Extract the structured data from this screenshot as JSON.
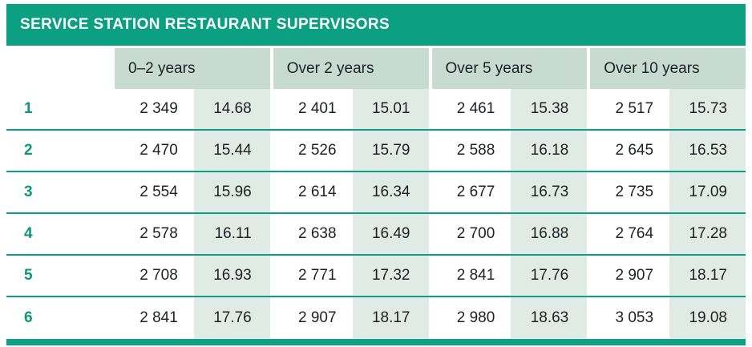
{
  "title": "SERVICE STATION RESTAURANT SUPERVISORS",
  "table": {
    "column_headers": [
      "0–2 years",
      "Over 2 years",
      "Over 5 years",
      "Over 10 years"
    ],
    "rows": [
      {
        "level": "1",
        "cells": [
          "2 349",
          "14.68",
          "2 401",
          "15.01",
          "2 461",
          "15.38",
          "2 517",
          "15.73"
        ]
      },
      {
        "level": "2",
        "cells": [
          "2 470",
          "15.44",
          "2 526",
          "15.79",
          "2 588",
          "16.18",
          "2 645",
          "16.53"
        ]
      },
      {
        "level": "3",
        "cells": [
          "2 554",
          "15.96",
          "2 614",
          "16.34",
          "2 677",
          "16.73",
          "2 735",
          "17.09"
        ]
      },
      {
        "level": "4",
        "cells": [
          "2 578",
          "16.11",
          "2 638",
          "16.49",
          "2 700",
          "16.88",
          "2 764",
          "17.28"
        ]
      },
      {
        "level": "5",
        "cells": [
          "2 708",
          "16.93",
          "2 771",
          "17.32",
          "2 841",
          "17.76",
          "2 907",
          "18.17"
        ]
      },
      {
        "level": "6",
        "cells": [
          "2 841",
          "17.76",
          "2 907",
          "18.17",
          "2 980",
          "18.63",
          "3 053",
          "19.08"
        ]
      }
    ]
  },
  "chart_data": {
    "type": "table",
    "title": "SERVICE STATION RESTAURANT SUPERVISORS",
    "categories": [
      "0–2 years",
      "Over 2 years",
      "Over 5 years",
      "Over 10 years"
    ],
    "row_labels": [
      "1",
      "2",
      "3",
      "4",
      "5",
      "6"
    ],
    "rows": [
      [
        2349,
        14.68,
        2401,
        15.01,
        2461,
        15.38,
        2517,
        15.73
      ],
      [
        2470,
        15.44,
        2526,
        15.79,
        2588,
        16.18,
        2645,
        16.53
      ],
      [
        2554,
        15.96,
        2614,
        16.34,
        2677,
        16.73,
        2735,
        17.09
      ],
      [
        2578,
        16.11,
        2638,
        16.49,
        2700,
        16.88,
        2764,
        17.28
      ],
      [
        2708,
        16.93,
        2771,
        17.32,
        2841,
        17.76,
        2907,
        18.17
      ],
      [
        2841,
        17.76,
        2907,
        18.17,
        2980,
        18.63,
        3053,
        19.08
      ]
    ]
  },
  "colors": {
    "accent_teal": "#0BA081",
    "header_cell_green": "#C7DBD3",
    "value_cell_green": "#E0EBE5",
    "row_number_teal": "#0D9578",
    "text_dark": "#1E2024",
    "title_text": "#FFFFFF"
  }
}
